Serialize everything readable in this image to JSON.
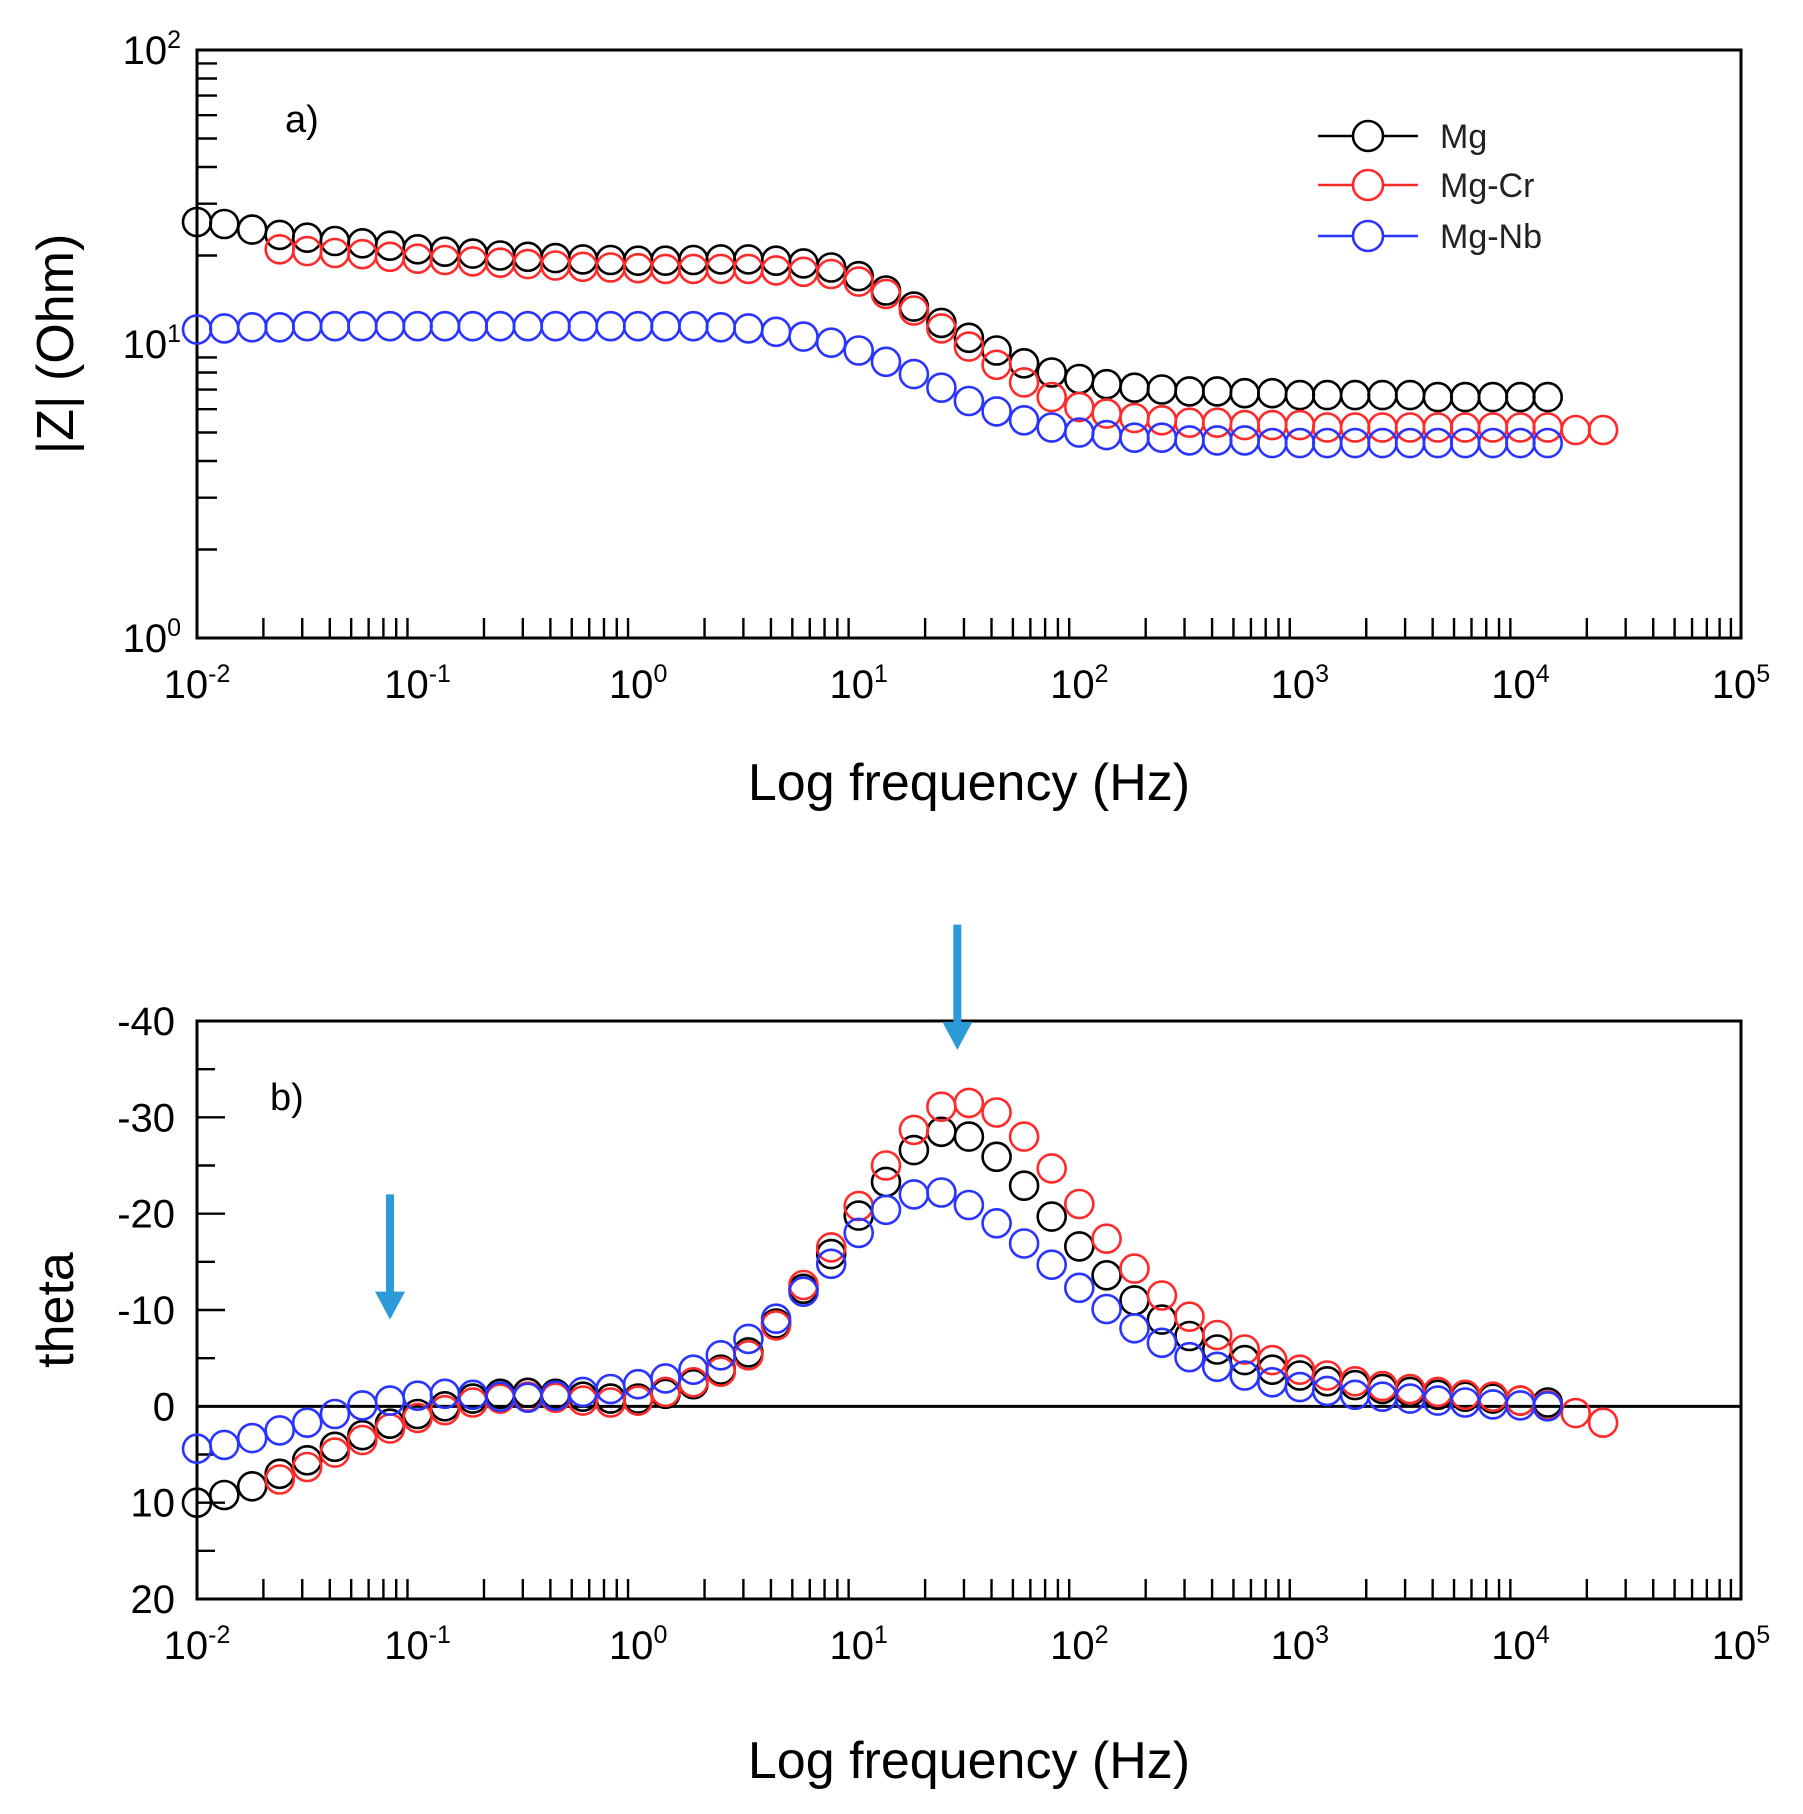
{
  "chart_data": [
    {
      "type": "scatter",
      "panel": "a)",
      "title": "",
      "xlabel": "Log frequency (Hz)",
      "ylabel": "|Z| (Ohm)",
      "x_scale": "log",
      "y_scale": "log",
      "xlim": [
        0.01,
        100000
      ],
      "ylim": [
        1,
        100
      ],
      "x_tick_labels": [
        {
          "base": "10",
          "exp": "-2"
        },
        {
          "base": "10",
          "exp": "-1"
        },
        {
          "base": "10",
          "exp": "0"
        },
        {
          "base": "10",
          "exp": "1"
        },
        {
          "base": "10",
          "exp": "2"
        },
        {
          "base": "10",
          "exp": "3"
        },
        {
          "base": "10",
          "exp": "4"
        },
        {
          "base": "10",
          "exp": "5"
        }
      ],
      "y_tick_labels": [
        {
          "base": "10",
          "exp": "0"
        },
        {
          "base": "10",
          "exp": "1"
        },
        {
          "base": "10",
          "exp": "2"
        }
      ],
      "legend": {
        "position": "top-right",
        "entries": [
          "Mg",
          "Mg-Cr",
          "Mg-Nb"
        ]
      },
      "series": [
        {
          "name": "Mg",
          "color": "#000000",
          "x": [
            0.01,
            0.0133,
            0.0178,
            0.0237,
            0.0316,
            0.0422,
            0.0562,
            0.075,
            0.1,
            0.133,
            0.178,
            0.237,
            0.316,
            0.422,
            0.562,
            0.75,
            1,
            1.33,
            1.78,
            2.37,
            3.16,
            4.22,
            5.62,
            7.5,
            10,
            13.3,
            17.8,
            23.7,
            31.6,
            42.2,
            56.2,
            75,
            100,
            133,
            178,
            237,
            316,
            422,
            562,
            750,
            1000,
            1330,
            1780,
            2370,
            3160,
            4220,
            5620,
            7500,
            10000,
            13300
          ],
          "y": [
            26,
            25.6,
            24.5,
            23.5,
            23,
            22.4,
            22,
            21.6,
            21,
            20.6,
            20.3,
            20,
            19.8,
            19.6,
            19.4,
            19.3,
            19.2,
            19.2,
            19.3,
            19.4,
            19.4,
            19.2,
            18.8,
            18.2,
            17,
            15.2,
            13.4,
            11.8,
            10.5,
            9.5,
            8.6,
            8,
            7.6,
            7.3,
            7.1,
            7,
            6.9,
            6.9,
            6.8,
            6.8,
            6.7,
            6.7,
            6.7,
            6.7,
            6.7,
            6.6,
            6.6,
            6.6,
            6.6,
            6.6
          ]
        },
        {
          "name": "Mg-Cr",
          "color": "#ff2a2a",
          "x": [
            0.0237,
            0.0316,
            0.0422,
            0.0562,
            0.075,
            0.1,
            0.133,
            0.178,
            0.237,
            0.316,
            0.422,
            0.562,
            0.75,
            1,
            1.33,
            1.78,
            2.37,
            3.16,
            4.22,
            5.62,
            7.5,
            10,
            13.3,
            17.8,
            23.7,
            31.6,
            42.2,
            56.2,
            75,
            100,
            133,
            178,
            237,
            316,
            422,
            562,
            750,
            1000,
            1330,
            1780,
            2370,
            3160,
            4220,
            5620,
            7500,
            10000,
            13300,
            17800,
            23700
          ],
          "y": [
            21,
            20.7,
            20.4,
            20.2,
            19.8,
            19.5,
            19.3,
            19.1,
            18.9,
            18.7,
            18.5,
            18.3,
            18.2,
            18.1,
            18,
            18,
            18,
            18,
            17.8,
            17.6,
            17.3,
            16.3,
            14.8,
            13,
            11.3,
            9.8,
            8.5,
            7.4,
            6.6,
            6.1,
            5.8,
            5.6,
            5.5,
            5.4,
            5.4,
            5.3,
            5.3,
            5.3,
            5.2,
            5.2,
            5.2,
            5.2,
            5.2,
            5.2,
            5.2,
            5.2,
            5.2,
            5.1,
            5.1
          ]
        },
        {
          "name": "Mg-Nb",
          "color": "#2a34ff",
          "x": [
            0.01,
            0.0133,
            0.0178,
            0.0237,
            0.0316,
            0.0422,
            0.0562,
            0.075,
            0.1,
            0.133,
            0.178,
            0.237,
            0.316,
            0.422,
            0.562,
            0.75,
            1,
            1.33,
            1.78,
            2.37,
            3.16,
            4.22,
            5.62,
            7.5,
            10,
            13.3,
            17.8,
            23.7,
            31.6,
            42.2,
            56.2,
            75,
            100,
            133,
            178,
            237,
            316,
            422,
            562,
            750,
            1000,
            1330,
            1780,
            2370,
            3160,
            4220,
            5620,
            7500,
            10000,
            13300
          ],
          "y": [
            11.2,
            11.3,
            11.4,
            11.4,
            11.5,
            11.5,
            11.5,
            11.5,
            11.5,
            11.5,
            11.5,
            11.5,
            11.5,
            11.5,
            11.5,
            11.5,
            11.5,
            11.5,
            11.5,
            11.4,
            11.3,
            11,
            10.6,
            10.1,
            9.5,
            8.7,
            7.9,
            7.1,
            6.4,
            5.9,
            5.5,
            5.2,
            5,
            4.9,
            4.8,
            4.8,
            4.7,
            4.7,
            4.7,
            4.6,
            4.6,
            4.6,
            4.6,
            4.6,
            4.6,
            4.6,
            4.6,
            4.6,
            4.6,
            4.6
          ]
        }
      ]
    },
    {
      "type": "scatter",
      "panel": "b)",
      "title": "",
      "xlabel": "Log frequency (Hz)",
      "ylabel": "theta",
      "x_scale": "log",
      "y_scale": "linear",
      "xlim": [
        0.01,
        100000
      ],
      "ylim": [
        20,
        -40
      ],
      "x_tick_labels": [
        {
          "base": "10",
          "exp": "-2"
        },
        {
          "base": "10",
          "exp": "-1"
        },
        {
          "base": "10",
          "exp": "0"
        },
        {
          "base": "10",
          "exp": "1"
        },
        {
          "base": "10",
          "exp": "2"
        },
        {
          "base": "10",
          "exp": "3"
        },
        {
          "base": "10",
          "exp": "4"
        },
        {
          "base": "10",
          "exp": "5"
        }
      ],
      "y_tick_labels": [
        {
          "value": -40,
          "label": "-40"
        },
        {
          "value": -30,
          "label": "-30"
        },
        {
          "value": -20,
          "label": "-20"
        },
        {
          "value": -10,
          "label": "-10"
        },
        {
          "value": 0,
          "label": "0"
        },
        {
          "value": 10,
          "label": "10"
        },
        {
          "value": 20,
          "label": "20"
        }
      ],
      "reference_line": 0,
      "annotations": [
        {
          "type": "arrow",
          "x": 0.075,
          "y_top": -22,
          "y_tip": -9,
          "color": "#2b9ad6"
        },
        {
          "type": "arrow",
          "x": 28,
          "y_top": -50,
          "y_tip": -37,
          "color": "#2b9ad6"
        }
      ],
      "series": [
        {
          "name": "Mg",
          "color": "#000000",
          "x": [
            0.01,
            0.0133,
            0.0178,
            0.0237,
            0.0316,
            0.0422,
            0.0562,
            0.075,
            0.1,
            0.133,
            0.178,
            0.237,
            0.316,
            0.422,
            0.562,
            0.75,
            1,
            1.33,
            1.78,
            2.37,
            3.16,
            4.22,
            5.62,
            7.5,
            10,
            13.3,
            17.8,
            23.7,
            31.6,
            42.2,
            56.2,
            75,
            100,
            133,
            178,
            237,
            316,
            422,
            562,
            750,
            1000,
            1330,
            1780,
            2370,
            3160,
            4220,
            5620,
            7500,
            10000,
            13300
          ],
          "y": [
            10,
            9.2,
            8.3,
            7,
            5.6,
            4.2,
            3,
            1.8,
            0.8,
            0,
            -0.8,
            -1.3,
            -1.4,
            -1.3,
            -1,
            -0.8,
            -0.8,
            -1.3,
            -2.3,
            -3.8,
            -5.6,
            -8.6,
            -12.2,
            -15.8,
            -19.8,
            -23.3,
            -26.6,
            -28.5,
            -28,
            -25.9,
            -22.9,
            -19.7,
            -16.6,
            -13.6,
            -11,
            -9,
            -7.3,
            -5.9,
            -4.8,
            -3.8,
            -3.2,
            -2.6,
            -2.2,
            -1.8,
            -1.5,
            -1.2,
            -1,
            -0.8,
            -0.6,
            -0.4
          ]
        },
        {
          "name": "Mg-Cr",
          "color": "#ff2a2a",
          "x": [
            0.0237,
            0.0316,
            0.0422,
            0.0562,
            0.075,
            0.1,
            0.133,
            0.178,
            0.237,
            0.316,
            0.422,
            0.562,
            0.75,
            1,
            1.33,
            1.78,
            2.37,
            3.16,
            4.22,
            5.62,
            7.5,
            10,
            13.3,
            17.8,
            23.7,
            31.6,
            42.2,
            56.2,
            75,
            100,
            133,
            178,
            237,
            316,
            422,
            562,
            750,
            1000,
            1330,
            1780,
            2370,
            3160,
            4220,
            5620,
            7500,
            10000,
            13300,
            17800,
            23700
          ],
          "y": [
            7.6,
            6.3,
            4.8,
            3.5,
            2.3,
            1.2,
            0.4,
            -0.4,
            -0.8,
            -1,
            -0.9,
            -0.6,
            -0.4,
            -0.6,
            -1.5,
            -2.5,
            -3.6,
            -5.3,
            -8.4,
            -12.6,
            -16.5,
            -20.8,
            -25,
            -28.7,
            -31.1,
            -31.5,
            -30.5,
            -28,
            -24.7,
            -21,
            -17.4,
            -14.3,
            -11.5,
            -9.3,
            -7.4,
            -5.9,
            -4.8,
            -3.8,
            -3.2,
            -2.6,
            -2.1,
            -1.8,
            -1.5,
            -1.2,
            -1,
            -0.6,
            -0.1,
            0.7,
            1.7
          ]
        },
        {
          "name": "Mg-Nb",
          "color": "#2a34ff",
          "x": [
            0.01,
            0.0133,
            0.0178,
            0.0237,
            0.0316,
            0.0422,
            0.0562,
            0.075,
            0.1,
            0.133,
            0.178,
            0.237,
            0.316,
            0.422,
            0.562,
            0.75,
            1,
            1.33,
            1.78,
            2.37,
            3.16,
            4.22,
            5.62,
            7.5,
            10,
            13.3,
            17.8,
            23.7,
            31.6,
            42.2,
            56.2,
            75,
            100,
            133,
            178,
            237,
            316,
            422,
            562,
            750,
            1000,
            1330,
            1780,
            2370,
            3160,
            4220,
            5620,
            7500,
            10000,
            13300
          ],
          "y": [
            4.4,
            4,
            3.3,
            2.5,
            1.7,
            0.8,
            -0.1,
            -0.6,
            -1.1,
            -1.3,
            -1.2,
            -1,
            -0.9,
            -1.1,
            -1.5,
            -1.8,
            -2.3,
            -2.9,
            -3.8,
            -5.3,
            -7,
            -9.1,
            -11.9,
            -14.8,
            -18,
            -20.4,
            -22,
            -22.2,
            -20.9,
            -19,
            -16.9,
            -14.7,
            -12.3,
            -10.1,
            -8.1,
            -6.6,
            -5.1,
            -4.1,
            -3.2,
            -2.5,
            -2,
            -1.6,
            -1.2,
            -1,
            -0.8,
            -0.6,
            -0.4,
            -0.2,
            -0.1,
            0
          ]
        }
      ]
    }
  ]
}
